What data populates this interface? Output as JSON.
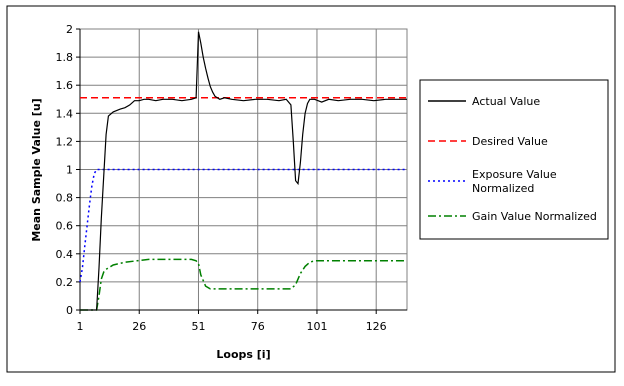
{
  "chart_data": {
    "type": "line",
    "title": "",
    "xlabel": "Loops [i]",
    "ylabel": "Mean Sample Value [u]",
    "xlim": [
      1,
      139
    ],
    "ylim": [
      0,
      2
    ],
    "x_ticks": [
      1,
      26,
      51,
      76,
      101,
      126
    ],
    "x_tick_labels": [
      "1",
      "26",
      "51",
      "76",
      "101",
      "126"
    ],
    "y_ticks": [
      0,
      0.2,
      0.4,
      0.6,
      0.8,
      1,
      1.2,
      1.4,
      1.6,
      1.8,
      2
    ],
    "y_tick_labels": [
      "0",
      "0.2",
      "0.4",
      "0.6",
      "0.8",
      "1",
      "1.2",
      "1.4",
      "1.6",
      "1.8",
      "2"
    ],
    "grid": true,
    "legend_position": "right",
    "series": [
      {
        "name": "Actual Value",
        "color": "#000000",
        "dash": "solid",
        "x": [
          1,
          5,
          8,
          9,
          10,
          11,
          12,
          13,
          15,
          18,
          20,
          22,
          24,
          26,
          28,
          30,
          33,
          36,
          40,
          44,
          48,
          50,
          51,
          52,
          53,
          54,
          55,
          56,
          57,
          58,
          60,
          62,
          65,
          70,
          75,
          80,
          85,
          88,
          90,
          91,
          92,
          93,
          94,
          95,
          96,
          97,
          98,
          100,
          103,
          106,
          110,
          115,
          120,
          125,
          130,
          135,
          139
        ],
        "y": [
          0,
          0,
          0,
          0.3,
          0.65,
          0.95,
          1.25,
          1.38,
          1.41,
          1.43,
          1.44,
          1.46,
          1.49,
          1.49,
          1.5,
          1.5,
          1.49,
          1.5,
          1.5,
          1.49,
          1.5,
          1.51,
          1.98,
          1.9,
          1.8,
          1.72,
          1.65,
          1.59,
          1.55,
          1.52,
          1.5,
          1.51,
          1.5,
          1.49,
          1.5,
          1.5,
          1.49,
          1.5,
          1.46,
          1.2,
          0.92,
          0.9,
          1.05,
          1.25,
          1.4,
          1.47,
          1.5,
          1.5,
          1.48,
          1.5,
          1.49,
          1.5,
          1.5,
          1.49,
          1.5,
          1.5,
          1.5
        ]
      },
      {
        "name": "Desired Value",
        "color": "#ff0000",
        "dash": "dashed",
        "x": [
          1,
          139
        ],
        "y": [
          1.51,
          1.51
        ]
      },
      {
        "name": "Exposure Value Normalized",
        "color": "#0000ff",
        "dash": "dotted",
        "x": [
          1,
          2,
          3,
          4,
          5,
          6,
          7,
          8,
          9,
          139
        ],
        "y": [
          0.2,
          0.3,
          0.45,
          0.6,
          0.75,
          0.88,
          0.97,
          1,
          1,
          1
        ]
      },
      {
        "name": "Gain Value Normalized",
        "color": "#008000",
        "dash": "dashdot",
        "x": [
          1,
          8,
          9,
          10,
          11,
          12,
          13,
          15,
          20,
          25,
          30,
          35,
          40,
          45,
          48,
          50,
          51,
          52,
          54,
          56,
          60,
          70,
          80,
          90,
          92,
          94,
          96,
          98,
          100,
          110,
          120,
          130,
          139
        ],
        "y": [
          0,
          0,
          0.1,
          0.22,
          0.27,
          0.29,
          0.3,
          0.32,
          0.34,
          0.35,
          0.36,
          0.36,
          0.36,
          0.36,
          0.36,
          0.35,
          0.33,
          0.25,
          0.17,
          0.15,
          0.15,
          0.15,
          0.15,
          0.15,
          0.18,
          0.26,
          0.31,
          0.34,
          0.35,
          0.35,
          0.35,
          0.35,
          0.35
        ]
      }
    ]
  }
}
